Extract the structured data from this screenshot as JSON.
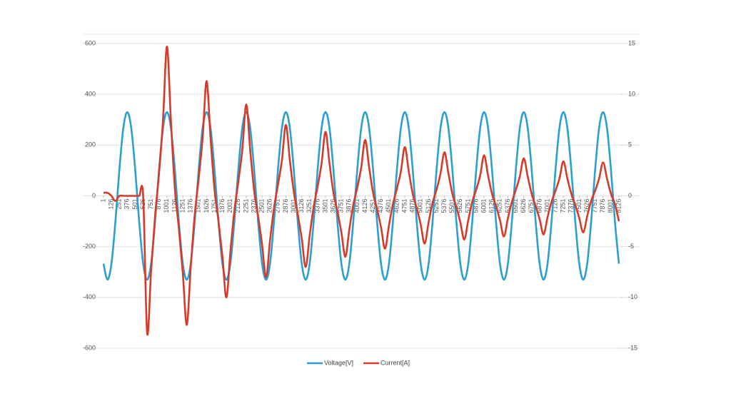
{
  "chart_data": {
    "type": "line",
    "x": [
      1,
      63.5,
      126,
      188.5,
      251,
      313.5,
      376,
      438.5,
      501,
      563.5,
      626,
      688.5,
      751,
      813.5,
      876,
      938.5,
      1001,
      1063.5,
      1126,
      1188.5,
      1251,
      1313.5,
      1376,
      1438.5,
      1501,
      1563.5,
      1626,
      1688.5,
      1751,
      1813.5,
      1876,
      1938.5,
      2001,
      2063.5,
      2126,
      2188.5,
      2251,
      2313.5,
      2376,
      2438.5,
      2501,
      2563.5,
      2626,
      2688.5,
      2751,
      2813.5,
      2876,
      2938.5,
      3001,
      3063.5,
      3126,
      3188.5,
      3251,
      3313.5,
      3376,
      3438.5,
      3501,
      3563.5,
      3626,
      3688.5,
      3751,
      3813.5,
      3876,
      3938.5,
      4001,
      4063.5,
      4126,
      4188.5,
      4251,
      4313.5,
      4376,
      4438.5,
      4501,
      4563.5,
      4626,
      4688.5,
      4751,
      4813.5,
      4876,
      4938.5,
      5001,
      5063.5,
      5126,
      5188.5,
      5251,
      5313.5,
      5376,
      5438.5,
      5501,
      5563.5,
      5626,
      5688.5,
      5751,
      5813.5,
      5876,
      5938.5,
      6001,
      6063.5,
      6126,
      6188.5,
      6251,
      6313.5,
      6376,
      6438.5,
      6501,
      6563.5,
      6626,
      6688.5,
      6751,
      6813.5,
      6876,
      6938.5,
      7001,
      7063.5,
      7126,
      7188.5,
      7251,
      7313.5,
      7376,
      7438.5,
      7501,
      7563.5,
      7626,
      7688.5,
      7751,
      7813.5,
      7876,
      7938.5,
      8001,
      8063.5,
      8126
    ],
    "series": [
      {
        "name": "Voltage[V]",
        "color": "#2a9fd0",
        "values": [
          -267,
          -330,
          -267,
          -102,
          102,
          267,
          330,
          267,
          102,
          -102,
          -267,
          -330,
          -267,
          -102,
          102,
          267,
          330,
          267,
          102,
          -102,
          -267,
          -330,
          -267,
          -102,
          102,
          267,
          330,
          267,
          102,
          -102,
          -267,
          -330,
          -267,
          -102,
          102,
          267,
          330,
          267,
          102,
          -102,
          -267,
          -330,
          -267,
          -102,
          102,
          267,
          330,
          267,
          102,
          -102,
          -267,
          -330,
          -267,
          -102,
          102,
          267,
          330,
          267,
          102,
          -102,
          -267,
          -330,
          -267,
          -102,
          102,
          267,
          330,
          267,
          102,
          -102,
          -267,
          -330,
          -267,
          -102,
          102,
          267,
          330,
          267,
          102,
          -102,
          -267,
          -330,
          -267,
          -102,
          102,
          267,
          330,
          267,
          102,
          -102,
          -267,
          -330,
          -267,
          -102,
          102,
          267,
          330,
          267,
          102,
          -102,
          -267,
          -330,
          -267,
          -102,
          102,
          267,
          330,
          267,
          102,
          -102,
          -267,
          -330,
          -267,
          -102,
          102,
          267,
          330,
          267,
          102,
          -102,
          -267,
          -330,
          -267,
          -102,
          102,
          267,
          330,
          267,
          102,
          -102,
          -267
        ]
      },
      {
        "name": "Current[A]",
        "color": "#d83a2a",
        "axis": "y2",
        "values": [
          0.3,
          0.3,
          0,
          -0.5,
          0,
          0,
          0,
          0,
          0,
          0,
          0,
          -13.5,
          -7.4,
          -2.0,
          2.2,
          7.4,
          14.7,
          7.4,
          0.7,
          -3.2,
          -7.6,
          -12.7,
          -7.0,
          -1.9,
          1.7,
          5.7,
          11.3,
          5.7,
          0.6,
          -2.5,
          -6.0,
          -10,
          -5.5,
          -1.5,
          1.4,
          4.5,
          9,
          4.5,
          0.5,
          -2,
          -4.8,
          -8,
          -4.4,
          -1.2,
          1.1,
          3.5,
          7,
          3.5,
          0.4,
          -1.8,
          -4.2,
          -7,
          -3.9,
          -1.1,
          0.9,
          3.2,
          6.3,
          3.2,
          0.3,
          -1.5,
          -3.6,
          -6,
          -3.3,
          -0.9,
          0.8,
          2.8,
          5.5,
          2.8,
          0.3,
          -1.3,
          -3.1,
          -5.2,
          -2.9,
          -0.8,
          0.7,
          2.4,
          4.8,
          2.4,
          0.2,
          -1.2,
          -2.8,
          -4.7,
          -2.6,
          -0.7,
          0.6,
          2.2,
          4.3,
          2.2,
          0.2,
          -1.1,
          -2.6,
          -4.3,
          -2.4,
          -0.6,
          0.6,
          2,
          4,
          2,
          0.2,
          -1,
          -2.4,
          -4,
          -2.2,
          -0.6,
          0.6,
          1.9,
          3.7,
          1.9,
          0.2,
          -1,
          -2.3,
          -3.8,
          -2.1,
          -0.6,
          0.5,
          1.7,
          3.4,
          1.7,
          0.2,
          -0.9,
          -2.2,
          -3.6,
          -2,
          -0.5,
          0.5,
          1.7,
          3.3,
          1.7,
          0.2,
          -0.8,
          -2.5
        ]
      }
    ],
    "xlim": [
      1,
      8160
    ],
    "xticks": [
      1,
      126,
      251,
      376,
      501,
      626,
      751,
      876,
      1001,
      1126,
      1251,
      1376,
      1501,
      1626,
      1751,
      1876,
      2001,
      2126,
      2251,
      2376,
      2501,
      2626,
      2751,
      2876,
      3001,
      3126,
      3251,
      3376,
      3501,
      3626,
      3751,
      3876,
      4001,
      4126,
      4251,
      4376,
      4501,
      4626,
      4751,
      4876,
      5001,
      5126,
      5251,
      5376,
      5501,
      5626,
      5751,
      5876,
      6001,
      6126,
      6251,
      6376,
      6501,
      6626,
      6751,
      6876,
      7001,
      7126,
      7251,
      7376,
      7501,
      7626,
      7751,
      7876,
      8001,
      8126
    ],
    "ylim": [
      -600,
      600
    ],
    "yticks": [
      -600,
      -400,
      -200,
      0,
      200,
      400,
      600
    ],
    "y2lim": [
      -15,
      15
    ],
    "y2ticks": [
      -15,
      -10,
      -5,
      0,
      5,
      10,
      15
    ],
    "grid": true,
    "legend": "bottom"
  }
}
